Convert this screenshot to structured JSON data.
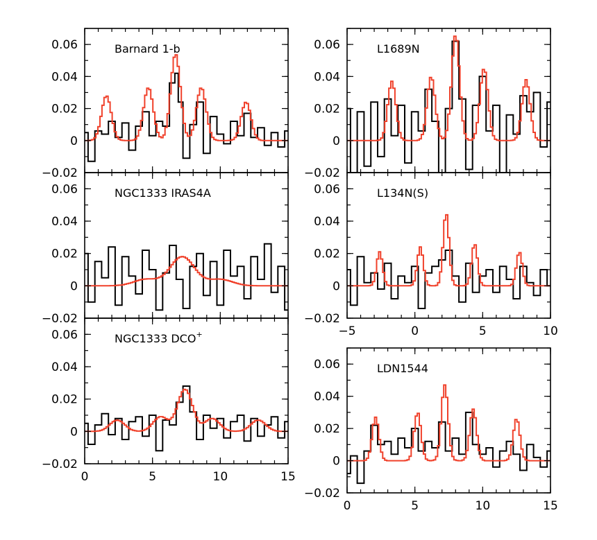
{
  "colors": {
    "observed": "#000000",
    "model": "#f0402a",
    "background": "#ffffff"
  },
  "chart_data": [
    {
      "type": "line",
      "title": "Barnard 1-b",
      "title_sup": "",
      "xlim": [
        0,
        15
      ],
      "ylim": [
        -0.02,
        0.07
      ],
      "xticks": [
        0,
        5,
        10,
        15
      ],
      "yticks": [
        -0.02,
        0,
        0.02,
        0.04,
        0.06
      ],
      "show_xtick_labels": false,
      "model_lines": [
        1.6,
        4.7,
        6.7,
        8.6,
        11.9
      ],
      "model_heights": [
        0.028,
        0.033,
        0.054,
        0.033,
        0.024
      ],
      "model_width": 0.36,
      "model_baseline": 0.0,
      "series": [
        {
          "role": "observed",
          "x": [
            0,
            0.5,
            1.0,
            1.5,
            2.0,
            2.5,
            3.0,
            3.5,
            4.0,
            4.5,
            5.0,
            5.5,
            6.0,
            6.5,
            6.8,
            7.0,
            7.5,
            8.0,
            8.5,
            9.0,
            9.5,
            10.0,
            10.5,
            11.0,
            11.5,
            12.0,
            12.5,
            13.0,
            13.5,
            14.0,
            14.5,
            15.0
          ],
          "y": [
            0.005,
            -0.013,
            0.006,
            0.004,
            0.012,
            0.002,
            0.011,
            -0.006,
            0.009,
            0.018,
            0.003,
            0.012,
            0.009,
            0.036,
            0.042,
            0.024,
            -0.011,
            0.01,
            0.024,
            -0.008,
            0.015,
            0.004,
            -0.002,
            0.012,
            0.003,
            0.017,
            0.002,
            0.008,
            -0.003,
            0.005,
            -0.004,
            0.006
          ]
        },
        {
          "role": "model",
          "x": [],
          "y": []
        }
      ]
    },
    {
      "type": "line",
      "title": "NGC1333 IRAS4A",
      "title_sup": "",
      "xlim": [
        0,
        15
      ],
      "ylim": [
        -0.02,
        0.07
      ],
      "xticks": [
        0,
        5,
        10,
        15
      ],
      "yticks": [
        -0.02,
        0,
        0.02,
        0.04,
        0.06
      ],
      "show_xtick_labels": false,
      "model_lines": [
        4.5,
        7.2,
        10.0
      ],
      "model_heights": [
        0.004,
        0.018,
        0.004
      ],
      "model_width": 0.9,
      "model_baseline": 0.0,
      "series": [
        {
          "role": "observed",
          "x": [
            0,
            0.5,
            1.0,
            1.5,
            2.0,
            2.5,
            3.0,
            3.5,
            4.0,
            4.5,
            5.0,
            5.5,
            6.0,
            6.5,
            7.0,
            7.5,
            8.0,
            8.5,
            9.0,
            9.5,
            10.0,
            10.5,
            11.0,
            11.5,
            12.0,
            12.5,
            13.0,
            13.5,
            14.0,
            14.5,
            15.0
          ],
          "y": [
            0.02,
            -0.01,
            0.015,
            0.005,
            0.024,
            -0.012,
            0.018,
            0.006,
            -0.005,
            0.022,
            0.01,
            -0.015,
            0.008,
            0.025,
            0.004,
            -0.014,
            0.012,
            0.02,
            -0.006,
            0.015,
            -0.012,
            0.022,
            0.006,
            0.012,
            -0.008,
            0.018,
            0.004,
            0.026,
            -0.004,
            0.012,
            -0.015
          ]
        },
        {
          "role": "model",
          "x": [],
          "y": []
        }
      ]
    },
    {
      "type": "line",
      "title": "NGC1333 DCO",
      "title_sup": "+",
      "xlim": [
        0,
        15
      ],
      "ylim": [
        -0.02,
        0.07
      ],
      "xticks": [
        0,
        5,
        10,
        15
      ],
      "yticks": [
        -0.02,
        0,
        0.02,
        0.04,
        0.06
      ],
      "show_xtick_labels": true,
      "model_lines": [
        2.4,
        5.6,
        7.4,
        9.4,
        12.8
      ],
      "model_heights": [
        0.007,
        0.009,
        0.026,
        0.008,
        0.007
      ],
      "model_width": 0.55,
      "model_baseline": 0.0,
      "series": [
        {
          "role": "observed",
          "x": [
            0,
            0.5,
            1.0,
            1.5,
            2.0,
            2.5,
            3.0,
            3.5,
            4.0,
            4.5,
            5.0,
            5.5,
            6.0,
            6.5,
            7.0,
            7.5,
            8.0,
            8.5,
            9.0,
            9.5,
            10.0,
            10.5,
            11.0,
            11.5,
            12.0,
            12.5,
            13.0,
            13.5,
            14.0,
            14.5,
            15.0
          ],
          "y": [
            0.005,
            -0.008,
            0.004,
            0.011,
            -0.002,
            0.008,
            -0.005,
            0.006,
            0.009,
            -0.003,
            0.01,
            -0.012,
            0.007,
            0.004,
            0.018,
            0.028,
            0.012,
            -0.005,
            0.01,
            0.002,
            0.008,
            -0.004,
            0.006,
            0.01,
            -0.006,
            0.008,
            -0.003,
            0.004,
            0.009,
            -0.004,
            0.006
          ]
        },
        {
          "role": "model",
          "x": [],
          "y": []
        }
      ]
    },
    {
      "type": "line",
      "title": "L1689N",
      "title_sup": "",
      "xlim": [
        0,
        15
      ],
      "ylim": [
        -0.02,
        0.07
      ],
      "xticks": [
        0,
        5,
        10,
        15
      ],
      "yticks": [
        -0.02,
        0,
        0.02,
        0.04,
        0.06
      ],
      "show_xtick_labels": false,
      "model_lines": [
        3.3,
        6.2,
        8.0,
        10.1,
        13.2
      ],
      "model_heights": [
        0.037,
        0.04,
        0.066,
        0.045,
        0.038
      ],
      "model_width": 0.3,
      "model_baseline": 0.0,
      "series": [
        {
          "role": "observed",
          "x": [
            0,
            0.5,
            1.0,
            1.5,
            2.0,
            2.5,
            3.0,
            3.5,
            4.0,
            4.5,
            5.0,
            5.5,
            6.0,
            6.5,
            7.0,
            7.5,
            8.0,
            8.5,
            9.0,
            9.5,
            10.0,
            10.5,
            11.0,
            11.5,
            12.0,
            12.5,
            13.0,
            13.5,
            14.0,
            14.5,
            15.0
          ],
          "y": [
            0.02,
            -0.02,
            0.018,
            -0.016,
            0.024,
            -0.01,
            0.026,
            0.003,
            0.022,
            -0.014,
            0.018,
            0.006,
            0.032,
            0.012,
            -0.02,
            0.02,
            0.062,
            0.026,
            -0.018,
            0.022,
            0.04,
            0.006,
            0.022,
            -0.02,
            0.016,
            0.004,
            0.028,
            0.018,
            0.03,
            -0.004,
            0.024
          ]
        },
        {
          "role": "model",
          "x": [],
          "y": []
        }
      ]
    },
    {
      "type": "line",
      "title": "L134N(S)",
      "title_sup": "",
      "xlim": [
        -5,
        10
      ],
      "ylim": [
        -0.02,
        0.07
      ],
      "xticks": [
        -5,
        0,
        5,
        10
      ],
      "yticks": [
        -0.02,
        0,
        0.02,
        0.04,
        0.06
      ],
      "show_xtick_labels": true,
      "model_lines": [
        -2.6,
        0.4,
        2.3,
        4.4,
        7.7
      ],
      "model_heights": [
        0.021,
        0.024,
        0.045,
        0.026,
        0.021
      ],
      "model_width": 0.22,
      "model_baseline": 0.0,
      "series": [
        {
          "role": "observed",
          "x": [
            -5,
            -4.5,
            -4,
            -3.5,
            -3,
            -2.5,
            -2,
            -1.5,
            -1,
            -0.5,
            0,
            0.5,
            1,
            1.5,
            2,
            2.5,
            3,
            3.5,
            4,
            4.5,
            5,
            5.5,
            6,
            6.5,
            7,
            7.5,
            8,
            8.5,
            9,
            9.5,
            10
          ],
          "y": [
            0.01,
            -0.012,
            0.018,
            0.002,
            0.008,
            -0.002,
            0.014,
            -0.008,
            0.006,
            0.002,
            0.012,
            -0.014,
            0.008,
            0.012,
            0.016,
            0.022,
            0.006,
            -0.01,
            0.014,
            -0.004,
            0.006,
            0.01,
            -0.004,
            0.012,
            0.004,
            -0.008,
            0.012,
            0.002,
            -0.006,
            0.01,
            0.0
          ]
        },
        {
          "role": "model",
          "x": [],
          "y": []
        }
      ]
    },
    {
      "type": "line",
      "title": "LDN1544",
      "title_sup": "",
      "xlim": [
        0,
        15
      ],
      "ylim": [
        -0.02,
        0.07
      ],
      "xticks": [
        0,
        5,
        10,
        15
      ],
      "yticks": [
        -0.02,
        0,
        0.02,
        0.04,
        0.06
      ],
      "show_xtick_labels": true,
      "model_lines": [
        2.1,
        5.2,
        7.2,
        9.3,
        12.5
      ],
      "model_heights": [
        0.027,
        0.03,
        0.047,
        0.032,
        0.026
      ],
      "model_width": 0.25,
      "model_baseline": 0.0,
      "series": [
        {
          "role": "observed",
          "x": [
            0,
            0.5,
            1.0,
            1.5,
            2.0,
            2.5,
            3.0,
            3.5,
            4.0,
            4.5,
            5.0,
            5.5,
            6.0,
            6.5,
            7.0,
            7.5,
            8.0,
            8.5,
            9.0,
            9.5,
            10.0,
            10.5,
            11.0,
            11.5,
            12.0,
            12.5,
            13.0,
            13.5,
            14.0,
            14.5,
            15.0
          ],
          "y": [
            -0.008,
            0.003,
            -0.014,
            0.006,
            0.022,
            0.01,
            0.012,
            0.004,
            0.014,
            0.008,
            0.02,
            0.006,
            0.012,
            0.008,
            0.024,
            0.006,
            0.014,
            0.004,
            0.03,
            0.01,
            0.004,
            0.008,
            -0.004,
            0.006,
            0.012,
            0.004,
            -0.006,
            0.01,
            0.002,
            -0.004,
            0.006
          ]
        },
        {
          "role": "model",
          "x": [],
          "y": []
        }
      ]
    }
  ]
}
